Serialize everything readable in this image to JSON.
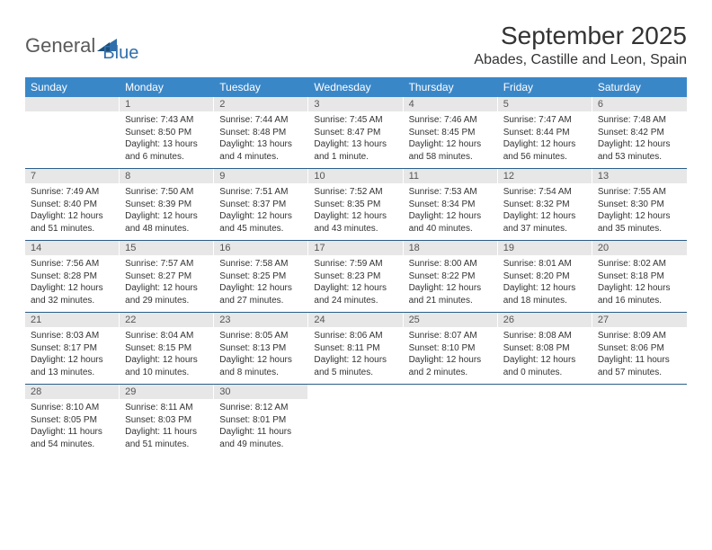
{
  "logo": {
    "part1": "General",
    "part2": "Blue"
  },
  "title": "September 2025",
  "location": "Abades, Castille and Leon, Spain",
  "colors": {
    "header_bg": "#3a87c8",
    "header_text": "#ffffff",
    "daynum_bg": "#e7e7e7",
    "week_border": "#2a5d8a",
    "body_text": "#333333",
    "logo_gray": "#5a5a5a",
    "logo_blue": "#2f6fab"
  },
  "day_names": [
    "Sunday",
    "Monday",
    "Tuesday",
    "Wednesday",
    "Thursday",
    "Friday",
    "Saturday"
  ],
  "weeks": [
    [
      {
        "n": "",
        "sunrise": "",
        "sunset": "",
        "daylight": ""
      },
      {
        "n": "1",
        "sunrise": "Sunrise: 7:43 AM",
        "sunset": "Sunset: 8:50 PM",
        "daylight": "Daylight: 13 hours and 6 minutes."
      },
      {
        "n": "2",
        "sunrise": "Sunrise: 7:44 AM",
        "sunset": "Sunset: 8:48 PM",
        "daylight": "Daylight: 13 hours and 4 minutes."
      },
      {
        "n": "3",
        "sunrise": "Sunrise: 7:45 AM",
        "sunset": "Sunset: 8:47 PM",
        "daylight": "Daylight: 13 hours and 1 minute."
      },
      {
        "n": "4",
        "sunrise": "Sunrise: 7:46 AM",
        "sunset": "Sunset: 8:45 PM",
        "daylight": "Daylight: 12 hours and 58 minutes."
      },
      {
        "n": "5",
        "sunrise": "Sunrise: 7:47 AM",
        "sunset": "Sunset: 8:44 PM",
        "daylight": "Daylight: 12 hours and 56 minutes."
      },
      {
        "n": "6",
        "sunrise": "Sunrise: 7:48 AM",
        "sunset": "Sunset: 8:42 PM",
        "daylight": "Daylight: 12 hours and 53 minutes."
      }
    ],
    [
      {
        "n": "7",
        "sunrise": "Sunrise: 7:49 AM",
        "sunset": "Sunset: 8:40 PM",
        "daylight": "Daylight: 12 hours and 51 minutes."
      },
      {
        "n": "8",
        "sunrise": "Sunrise: 7:50 AM",
        "sunset": "Sunset: 8:39 PM",
        "daylight": "Daylight: 12 hours and 48 minutes."
      },
      {
        "n": "9",
        "sunrise": "Sunrise: 7:51 AM",
        "sunset": "Sunset: 8:37 PM",
        "daylight": "Daylight: 12 hours and 45 minutes."
      },
      {
        "n": "10",
        "sunrise": "Sunrise: 7:52 AM",
        "sunset": "Sunset: 8:35 PM",
        "daylight": "Daylight: 12 hours and 43 minutes."
      },
      {
        "n": "11",
        "sunrise": "Sunrise: 7:53 AM",
        "sunset": "Sunset: 8:34 PM",
        "daylight": "Daylight: 12 hours and 40 minutes."
      },
      {
        "n": "12",
        "sunrise": "Sunrise: 7:54 AM",
        "sunset": "Sunset: 8:32 PM",
        "daylight": "Daylight: 12 hours and 37 minutes."
      },
      {
        "n": "13",
        "sunrise": "Sunrise: 7:55 AM",
        "sunset": "Sunset: 8:30 PM",
        "daylight": "Daylight: 12 hours and 35 minutes."
      }
    ],
    [
      {
        "n": "14",
        "sunrise": "Sunrise: 7:56 AM",
        "sunset": "Sunset: 8:28 PM",
        "daylight": "Daylight: 12 hours and 32 minutes."
      },
      {
        "n": "15",
        "sunrise": "Sunrise: 7:57 AM",
        "sunset": "Sunset: 8:27 PM",
        "daylight": "Daylight: 12 hours and 29 minutes."
      },
      {
        "n": "16",
        "sunrise": "Sunrise: 7:58 AM",
        "sunset": "Sunset: 8:25 PM",
        "daylight": "Daylight: 12 hours and 27 minutes."
      },
      {
        "n": "17",
        "sunrise": "Sunrise: 7:59 AM",
        "sunset": "Sunset: 8:23 PM",
        "daylight": "Daylight: 12 hours and 24 minutes."
      },
      {
        "n": "18",
        "sunrise": "Sunrise: 8:00 AM",
        "sunset": "Sunset: 8:22 PM",
        "daylight": "Daylight: 12 hours and 21 minutes."
      },
      {
        "n": "19",
        "sunrise": "Sunrise: 8:01 AM",
        "sunset": "Sunset: 8:20 PM",
        "daylight": "Daylight: 12 hours and 18 minutes."
      },
      {
        "n": "20",
        "sunrise": "Sunrise: 8:02 AM",
        "sunset": "Sunset: 8:18 PM",
        "daylight": "Daylight: 12 hours and 16 minutes."
      }
    ],
    [
      {
        "n": "21",
        "sunrise": "Sunrise: 8:03 AM",
        "sunset": "Sunset: 8:17 PM",
        "daylight": "Daylight: 12 hours and 13 minutes."
      },
      {
        "n": "22",
        "sunrise": "Sunrise: 8:04 AM",
        "sunset": "Sunset: 8:15 PM",
        "daylight": "Daylight: 12 hours and 10 minutes."
      },
      {
        "n": "23",
        "sunrise": "Sunrise: 8:05 AM",
        "sunset": "Sunset: 8:13 PM",
        "daylight": "Daylight: 12 hours and 8 minutes."
      },
      {
        "n": "24",
        "sunrise": "Sunrise: 8:06 AM",
        "sunset": "Sunset: 8:11 PM",
        "daylight": "Daylight: 12 hours and 5 minutes."
      },
      {
        "n": "25",
        "sunrise": "Sunrise: 8:07 AM",
        "sunset": "Sunset: 8:10 PM",
        "daylight": "Daylight: 12 hours and 2 minutes."
      },
      {
        "n": "26",
        "sunrise": "Sunrise: 8:08 AM",
        "sunset": "Sunset: 8:08 PM",
        "daylight": "Daylight: 12 hours and 0 minutes."
      },
      {
        "n": "27",
        "sunrise": "Sunrise: 8:09 AM",
        "sunset": "Sunset: 8:06 PM",
        "daylight": "Daylight: 11 hours and 57 minutes."
      }
    ],
    [
      {
        "n": "28",
        "sunrise": "Sunrise: 8:10 AM",
        "sunset": "Sunset: 8:05 PM",
        "daylight": "Daylight: 11 hours and 54 minutes."
      },
      {
        "n": "29",
        "sunrise": "Sunrise: 8:11 AM",
        "sunset": "Sunset: 8:03 PM",
        "daylight": "Daylight: 11 hours and 51 minutes."
      },
      {
        "n": "30",
        "sunrise": "Sunrise: 8:12 AM",
        "sunset": "Sunset: 8:01 PM",
        "daylight": "Daylight: 11 hours and 49 minutes."
      },
      {
        "n": "",
        "sunrise": "",
        "sunset": "",
        "daylight": ""
      },
      {
        "n": "",
        "sunrise": "",
        "sunset": "",
        "daylight": ""
      },
      {
        "n": "",
        "sunrise": "",
        "sunset": "",
        "daylight": ""
      },
      {
        "n": "",
        "sunrise": "",
        "sunset": "",
        "daylight": ""
      }
    ]
  ]
}
